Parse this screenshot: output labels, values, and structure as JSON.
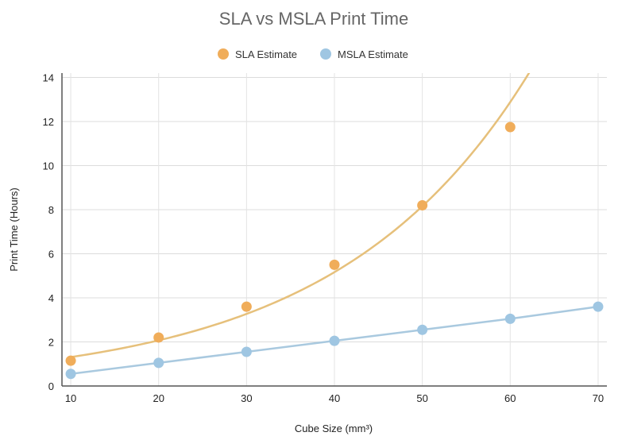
{
  "chart_data": {
    "type": "line",
    "title": "SLA vs MSLA Print Time",
    "xlabel": "Cube Size (mm³)",
    "ylabel": "Print Time (Hours)",
    "xlim": [
      9,
      71
    ],
    "ylim": [
      0,
      14.2
    ],
    "x_ticks": [
      10,
      20,
      30,
      40,
      50,
      60,
      70
    ],
    "y_ticks": [
      0,
      2,
      4,
      6,
      8,
      10,
      12,
      14
    ],
    "grid": true,
    "legend_position": "top",
    "series": [
      {
        "name": "SLA Estimate",
        "color": "#f0ad5a",
        "line_color": "#e6c07b",
        "x": [
          10,
          20,
          30,
          40,
          50,
          60
        ],
        "values": [
          1.15,
          2.2,
          3.6,
          5.5,
          8.2,
          11.75
        ],
        "curve_extends_to_x": 66
      },
      {
        "name": "MSLA Estimate",
        "color": "#9fc6e2",
        "line_color": "#a9c9df",
        "x": [
          10,
          20,
          30,
          40,
          50,
          60,
          70
        ],
        "values": [
          0.55,
          1.05,
          1.55,
          2.05,
          2.55,
          3.05,
          3.6
        ]
      }
    ]
  }
}
